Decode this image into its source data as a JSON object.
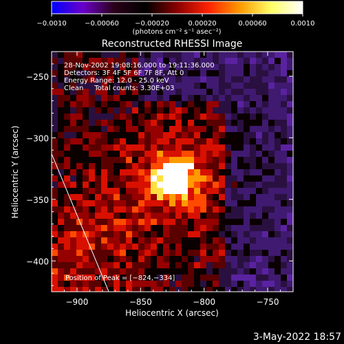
{
  "chart_data": {
    "type": "heatmap",
    "title": "Reconstructed RHESSI Image",
    "xlabel": "Heliocentric X (arcsec)",
    "ylabel": "Heliocentric Y (arcsec)",
    "xlim": [
      -920,
      -730
    ],
    "ylim": [
      -425,
      -230
    ],
    "xticks": [
      -900,
      -850,
      -800,
      -750
    ],
    "xtick_labels": [
      "−900",
      "−850",
      "−800",
      "−750"
    ],
    "yticks": [
      -250,
      -300,
      -350,
      -400
    ],
    "ytick_labels": [
      "−250",
      "−300",
      "−350",
      "−400"
    ],
    "colorbar": {
      "range": [
        -0.001,
        0.001
      ],
      "ticks": [
        -0.001,
        -0.0006,
        -0.0002,
        0.0002,
        0.0006,
        0.001
      ],
      "tick_labels": [
        "−0.0010",
        "−0.00060",
        "−0.00020",
        "0.00020",
        "0.00060",
        "0.0010"
      ],
      "unit_label": "(photons cm⁻² s⁻¹ asec⁻²)",
      "colors": [
        "#0000ff",
        "#6a00c8",
        "#2a0018",
        "#000000",
        "#8a0000",
        "#ff2200",
        "#ff9a00",
        "#ffff66",
        "#ffffff"
      ]
    },
    "annotations": [
      "28-Nov-2002 19:08:16.000 to 19:11:36.000",
      "Detectors: 3F 4F 5F 6F 7F 8F, Att 0",
      "Energy Range: 12.0 - 25.0 keV",
      "Clean     Total counts: 3.30E+03"
    ],
    "peak": {
      "label": "Position of Peak = [−824,−334]",
      "x": -824,
      "y": -334
    },
    "limb_line": {
      "points": [
        [
          -920,
          -313
        ],
        [
          -875,
          -425
        ]
      ]
    }
  },
  "footer": {
    "date": "3-May-2022 18:57"
  }
}
